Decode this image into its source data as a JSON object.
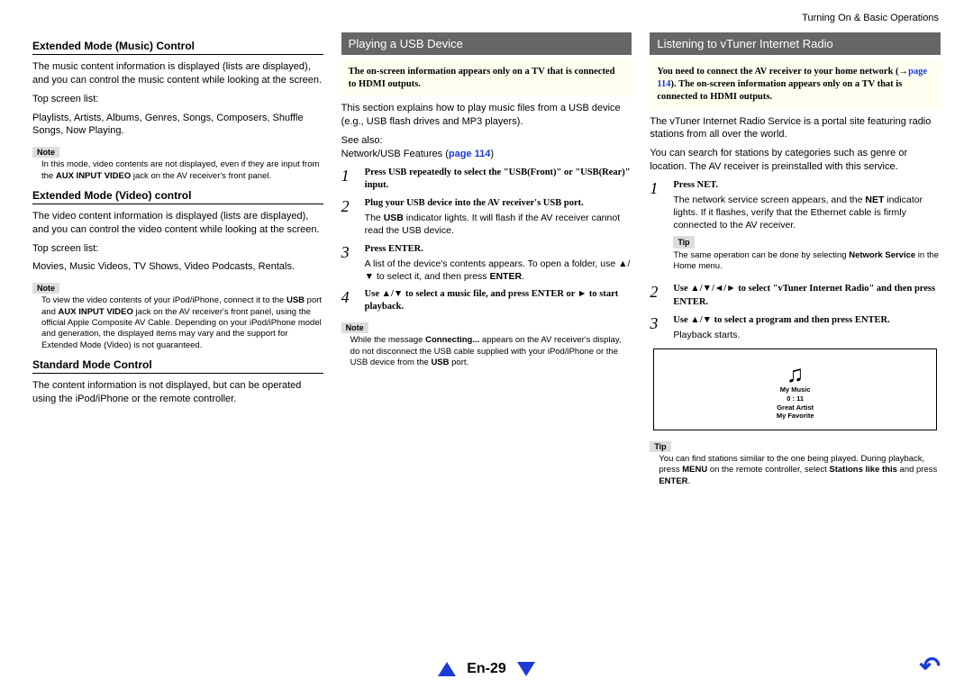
{
  "header": {
    "section": "Turning On & Basic Operations"
  },
  "col1": {
    "h1": "Extended Mode (Music) Control",
    "p1": "The music content information is displayed (lists are displayed), and you can control the music content while looking at the screen.",
    "p2": "Top screen list:",
    "p3": "Playlists, Artists, Albums, Genres, Songs, Composers, Shuffle Songs, Now Playing.",
    "note1_label": "Note",
    "note1": "In this mode, video contents are not displayed, even if they are input from the <b>AUX INPUT VIDEO</b> jack on the AV receiver's front panel.",
    "h2": "Extended Mode (Video) control",
    "p4": "The video content information is displayed (lists are displayed), and you can control the video content while looking at the screen.",
    "p5": "Top screen list:",
    "p6": "Movies, Music Videos, TV Shows, Video Podcasts, Rentals.",
    "note2_label": "Note",
    "note2": "To view the video contents of your iPod/iPhone, connect it to the <b>USB</b> port and <b>AUX INPUT VIDEO</b> jack on the AV receiver's front panel, using the official Apple Composite AV Cable. Depending on your iPod/iPhone model and generation, the displayed items may vary and the support for Extended Mode (Video) is not guaranteed.",
    "h3": "Standard Mode Control",
    "p7": "The content information is not displayed, but can be operated using the iPod/iPhone or the remote controller."
  },
  "col2": {
    "banner": "Playing a USB Device",
    "hbox": "The on-screen information appears only on a TV that is connected to HDMI outputs.",
    "p1": "This section explains how to play music files from a USB device (e.g., USB flash drives and MP3 players).",
    "p2": "See also:",
    "p3a": "Network/USB Features (",
    "p3b": "page 114",
    "p3c": ")",
    "steps": [
      {
        "n": "1",
        "t": "Press USB repeatedly to select the \"USB(Front)\" or \"USB(Rear)\" input."
      },
      {
        "n": "2",
        "t": "Plug your USB device into the AV receiver's USB port.",
        "d": "The <b>USB</b> indicator lights. It will flash if the AV receiver cannot read the USB device."
      },
      {
        "n": "3",
        "t": "Press ENTER.",
        "d": "A list of the device's contents appears. To open a folder, use ▲/▼ to select it, and then press <b>ENTER</b>."
      },
      {
        "n": "4",
        "t": "Use ▲/▼ to select a music file, and press ENTER or ► to start playback."
      }
    ],
    "note_label": "Note",
    "note": "While the message <b>Connecting...</b> appears on the AV receiver's display, do not disconnect the USB cable supplied with your iPod/iPhone or the USB device from the <b>USB</b> port."
  },
  "col3": {
    "banner": "Listening to vTuner Internet Radio",
    "hbox": "You need to connect the AV receiver to your home network (→<span class='page-link'>page 114</span>). The on-screen information appears only on a TV that is connected to HDMI outputs.",
    "p1": "The vTuner Internet Radio Service is a portal site featuring radio stations from all over the world.",
    "p2": "You can search for stations by categories such as genre or location. The AV receiver is preinstalled with this service.",
    "steps": [
      {
        "n": "1",
        "t": "Press NET.",
        "d": "The network service screen appears, and the <b>NET</b> indicator lights. If it flashes, verify that the Ethernet cable is firmly connected to the AV receiver."
      },
      {
        "n": "2",
        "t": "Use ▲/▼/◄/► to select \"vTuner Internet Radio\" and then press ENTER."
      },
      {
        "n": "3",
        "t": "Use ▲/▼ to select a program and then press ENTER.",
        "d": "Playback starts."
      }
    ],
    "tip1_label": "Tip",
    "tip1": "The same operation can be done by selecting <b>Network Service</b> in the Home menu.",
    "display": {
      "l1": "My Music",
      "l2": "0 : 11",
      "l3": "Great Artist",
      "l4": "My Favorite"
    },
    "tip2_label": "Tip",
    "tip2": "You can find stations similar to the one being played. During playback, press <b>MENU</b> on the remote controller, select <b>Stations like this</b> and press <b>ENTER</b>."
  },
  "footer": {
    "page": "En-29"
  }
}
